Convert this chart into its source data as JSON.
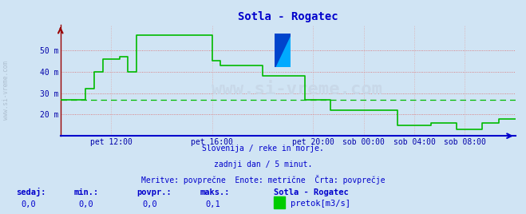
{
  "title": "Sotla - Rogatec",
  "title_color": "#0000cc",
  "background_color": "#d0e4f4",
  "plot_bg_color": "#d0e4f4",
  "line_color": "#00bb00",
  "avg_line_color": "#00bb00",
  "grid_color_h": "#dd6666",
  "grid_color_v": "#ddaaaa",
  "tick_label_color": "#0000aa",
  "x_axis_color": "#0000cc",
  "y_axis_color": "#990000",
  "watermark_text": "www.si-vreme.com",
  "watermark_color": "#c8d8e8",
  "side_watermark": "www.si-vreme.com",
  "subtitle_lines": [
    "Slovenija / reke in morje.",
    "zadnji dan / 5 minut.",
    "Meritve: povprečne  Enote: metrične  Črta: povprečje"
  ],
  "footer_labels": [
    "sedaj:",
    "min.:",
    "povpr.:",
    "maks.:"
  ],
  "footer_values": [
    "0,0",
    "0,0",
    "0,0",
    "0,1"
  ],
  "footer_series_name": "Sotla - Rogatec",
  "footer_legend_label": "pretok[m3/s]",
  "footer_legend_color": "#00cc00",
  "yticks": [
    20,
    30,
    40,
    50
  ],
  "ytick_labels": [
    "20 m",
    "30 m",
    "40 m",
    "50 m"
  ],
  "ylim_min": 10,
  "ylim_max": 62,
  "avg_value": 27.0,
  "xtick_labels": [
    "pet 12:00",
    "pet 16:00",
    "pet 20:00",
    "sob 00:00",
    "sob 04:00",
    "sob 08:00"
  ],
  "xtick_positions": [
    12,
    36,
    60,
    72,
    84,
    96
  ],
  "data_x": [
    0,
    2,
    4,
    6,
    8,
    10,
    12,
    14,
    16,
    18,
    20,
    22,
    24,
    26,
    28,
    30,
    32,
    34,
    36,
    38,
    40,
    42,
    44,
    46,
    48,
    50,
    52,
    54,
    56,
    58,
    60,
    62,
    64,
    66,
    68,
    70,
    72,
    74,
    76,
    78,
    80,
    82,
    84,
    86,
    88,
    90,
    92,
    94,
    96,
    98,
    100,
    102,
    104,
    106,
    108
  ],
  "data_y": [
    27,
    27,
    27,
    32,
    40,
    46,
    46,
    47,
    40,
    57,
    57,
    57,
    57,
    57,
    57,
    57,
    57,
    57,
    45,
    43,
    43,
    43,
    43,
    43,
    38,
    38,
    38,
    38,
    38,
    27,
    27,
    27,
    22,
    22,
    22,
    22,
    22,
    22,
    22,
    22,
    15,
    15,
    15,
    15,
    16,
    16,
    16,
    13,
    13,
    13,
    16,
    16,
    18,
    18,
    18
  ],
  "xmax": 108
}
